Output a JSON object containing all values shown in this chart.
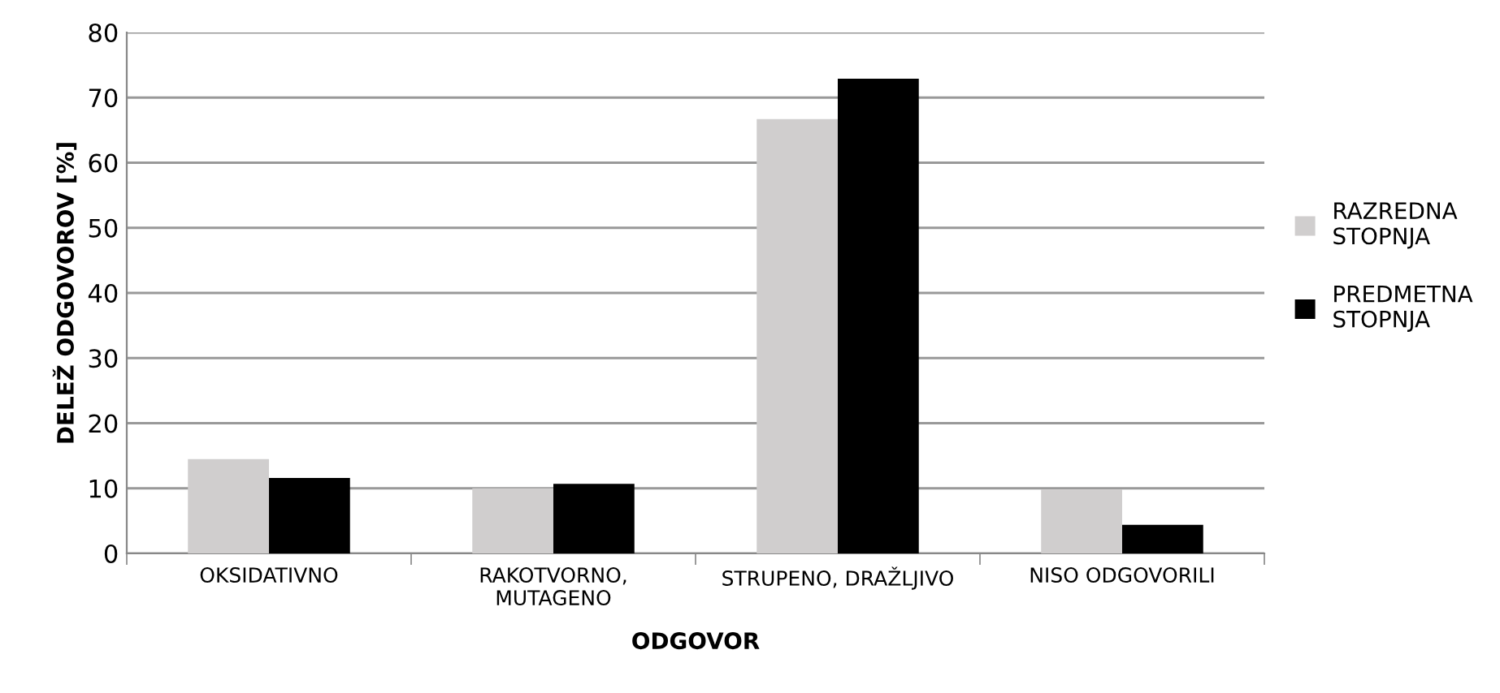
{
  "chart_data": {
    "type": "bar",
    "xlabel": "ODGOVOR",
    "ylabel": "DELEŽ ODGOVOROV [%]",
    "categories": [
      "OKSIDATIVNO",
      "RAKOTVORNO,\nMUTAGENO",
      "STRUPENO, DRAŽLJIVO",
      "NISO ODGOVORILI"
    ],
    "series": [
      {
        "name": "RAZREDNA\nSTOPNJA",
        "color": "#d0cece",
        "values": [
          14.5,
          10,
          66.7,
          9.8
        ]
      },
      {
        "name": "PREDMETNA\nSTOPNJA",
        "color": "#000000",
        "values": [
          11.6,
          10.7,
          72.9,
          4.4
        ]
      }
    ],
    "ylim": [
      0,
      80
    ],
    "yticks": [
      0,
      10,
      20,
      30,
      40,
      50,
      60,
      70,
      80
    ],
    "grid": "y",
    "legend": "right"
  }
}
